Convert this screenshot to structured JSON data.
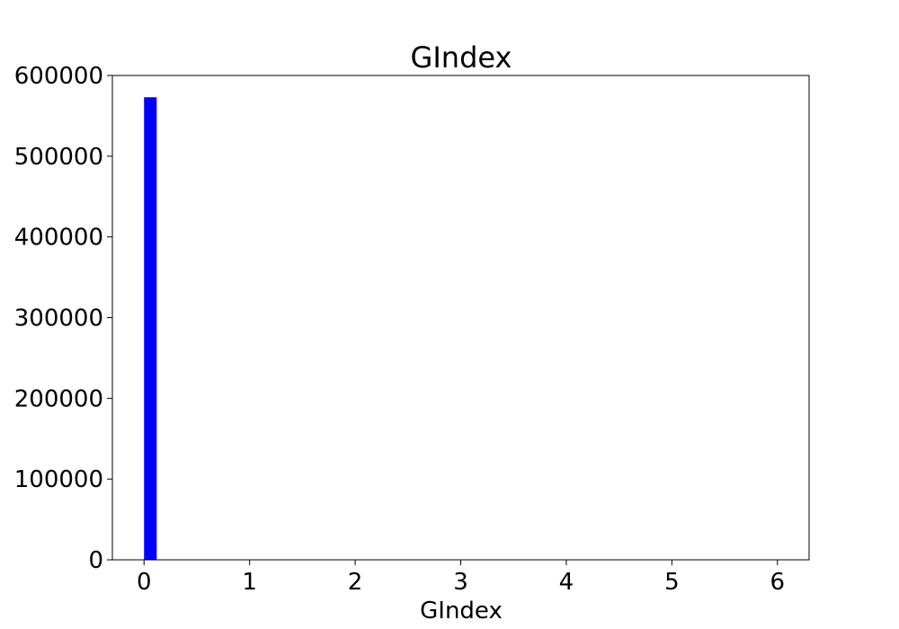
{
  "chart_data": {
    "type": "bar",
    "title": "GIndex",
    "xlabel": "GIndex",
    "ylabel": "",
    "xlim": [
      -0.3,
      6.3
    ],
    "ylim": [
      0,
      600000
    ],
    "x_ticks": [
      "0",
      "1",
      "2",
      "3",
      "4",
      "5",
      "6"
    ],
    "y_ticks": [
      "0",
      "100000",
      "200000",
      "300000",
      "400000",
      "500000",
      "600000"
    ],
    "bars": [
      {
        "x_start": 0.0,
        "x_end": 0.12,
        "value": 573000
      }
    ],
    "bar_color": "#0000ff",
    "grid": false,
    "legend": "none"
  }
}
